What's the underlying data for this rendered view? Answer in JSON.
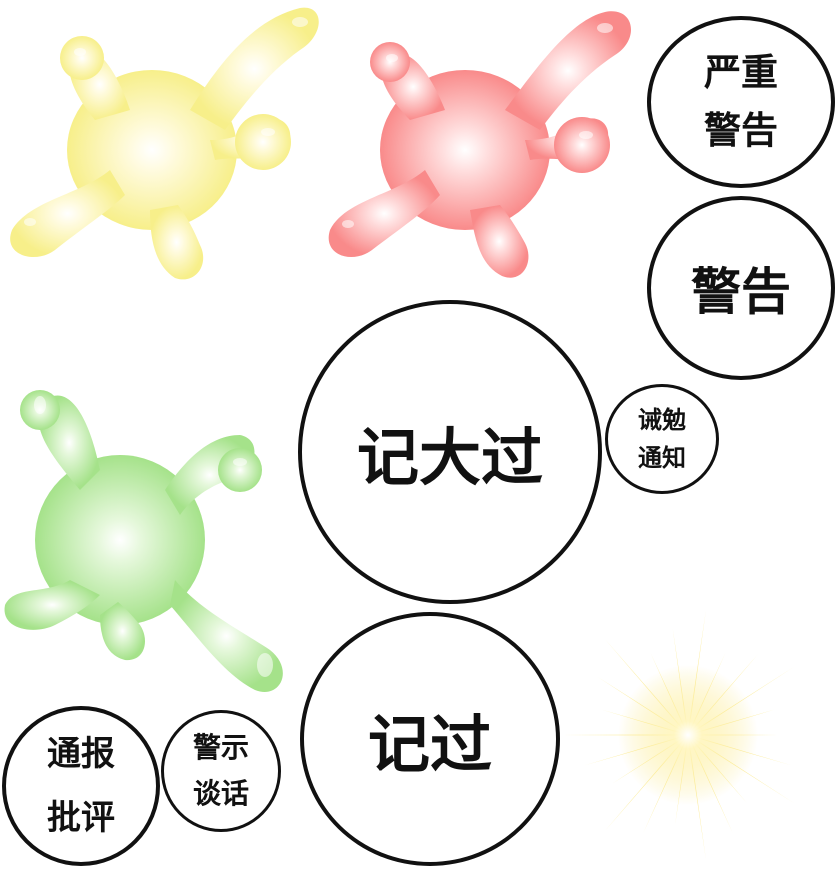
{
  "colors": {
    "yellow_splat": "#f7ef8a",
    "red_splat": "#f98a8a",
    "green_splat": "#a5e28a",
    "burst": "#fbe98a",
    "border": "#111111"
  },
  "decorations": {
    "yellow": "yellow-splat-icon",
    "red": "red-splat-icon",
    "green": "green-splat-icon",
    "burst": "sunburst-icon"
  },
  "bubbles": {
    "serious_warning": [
      "严重",
      "警告"
    ],
    "warning": [
      "警告"
    ],
    "major_demerit": [
      "记大过"
    ],
    "admonition_notice": [
      "诫勉",
      "通知"
    ],
    "demerit": [
      "记过"
    ],
    "circulated_criticism": [
      "通报",
      "批评"
    ],
    "warning_talk": [
      "警示",
      "谈话"
    ]
  }
}
